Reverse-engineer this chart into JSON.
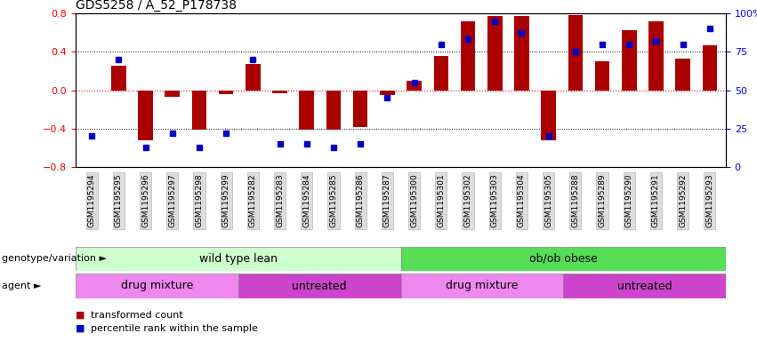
{
  "title": "GDS5258 / A_52_P178738",
  "samples": [
    "GSM1195294",
    "GSM1195295",
    "GSM1195296",
    "GSM1195297",
    "GSM1195298",
    "GSM1195299",
    "GSM1195282",
    "GSM1195283",
    "GSM1195284",
    "GSM1195285",
    "GSM1195286",
    "GSM1195287",
    "GSM1195300",
    "GSM1195301",
    "GSM1195302",
    "GSM1195303",
    "GSM1195304",
    "GSM1195305",
    "GSM1195288",
    "GSM1195289",
    "GSM1195290",
    "GSM1195291",
    "GSM1195292",
    "GSM1195293"
  ],
  "transformed_count": [
    0.0,
    0.25,
    -0.52,
    -0.07,
    -0.41,
    -0.04,
    0.27,
    -0.03,
    -0.41,
    -0.41,
    -0.38,
    -0.05,
    0.1,
    0.36,
    0.72,
    0.77,
    0.77,
    -0.52,
    0.78,
    0.3,
    0.62,
    0.72,
    0.33,
    0.47
  ],
  "percentile_rank": [
    20,
    70,
    13,
    22,
    13,
    22,
    70,
    15,
    15,
    13,
    15,
    45,
    55,
    80,
    83,
    95,
    87,
    20,
    75,
    80,
    80,
    82,
    80,
    90
  ],
  "genotype_groups": [
    {
      "label": "wild type lean",
      "start": 0,
      "end": 12,
      "color": "#ccffcc"
    },
    {
      "label": "ob/ob obese",
      "start": 12,
      "end": 24,
      "color": "#55dd55"
    }
  ],
  "agent_groups": [
    {
      "label": "drug mixture",
      "start": 0,
      "end": 6,
      "color": "#ee88ee"
    },
    {
      "label": "untreated",
      "start": 6,
      "end": 12,
      "color": "#cc44cc"
    },
    {
      "label": "drug mixture",
      "start": 12,
      "end": 18,
      "color": "#ee88ee"
    },
    {
      "label": "untreated",
      "start": 18,
      "end": 24,
      "color": "#cc44cc"
    }
  ],
  "bar_color": "#aa0000",
  "dot_color": "#0000cc",
  "ylim": [
    -0.8,
    0.8
  ],
  "yticks_left": [
    -0.8,
    -0.4,
    0.0,
    0.4,
    0.8
  ],
  "yticks_right_pct": [
    0,
    25,
    50,
    75,
    100
  ],
  "yticks_right_labels": [
    "0",
    "25",
    "50",
    "75",
    "100%"
  ],
  "legend_items": [
    {
      "label": "transformed count",
      "color": "#aa0000"
    },
    {
      "label": "percentile rank within the sample",
      "color": "#0000cc"
    }
  ]
}
